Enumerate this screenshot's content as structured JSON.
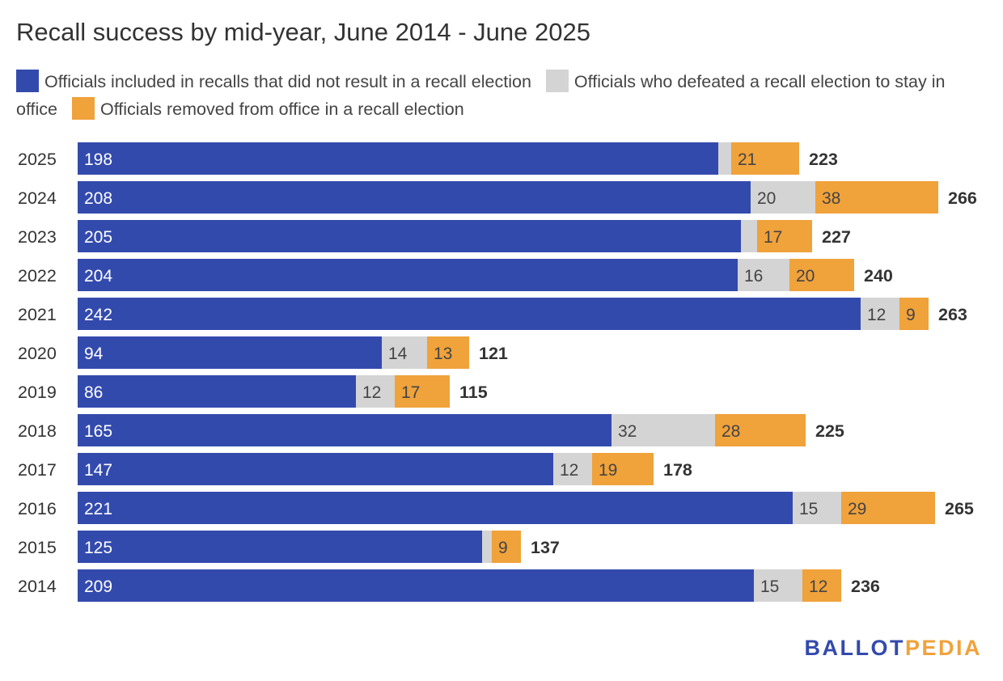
{
  "chart_data": {
    "type": "bar",
    "orientation": "horizontal",
    "stacked": true,
    "title": "Recall success by mid-year, June 2014 - June 2025",
    "categories": [
      "2025",
      "2024",
      "2023",
      "2022",
      "2021",
      "2020",
      "2019",
      "2018",
      "2017",
      "2016",
      "2015",
      "2014"
    ],
    "series": [
      {
        "name": "Officials included in recalls that did not result in a recall election",
        "color": "#334aad",
        "label_color": "#ffffff",
        "values": [
          198,
          208,
          205,
          204,
          242,
          94,
          86,
          165,
          147,
          221,
          125,
          209
        ]
      },
      {
        "name": "Officials who defeated a recall election to stay in office",
        "color": "#d4d4d4",
        "label_color": "#444444",
        "values": [
          4,
          20,
          5,
          16,
          12,
          14,
          12,
          32,
          12,
          15,
          3,
          15
        ]
      },
      {
        "name": "Officials removed from office in a recall election",
        "color": "#f0a23b",
        "label_color": "#444444",
        "values": [
          21,
          38,
          17,
          20,
          9,
          13,
          17,
          28,
          19,
          29,
          9,
          12
        ]
      }
    ],
    "segment_labels": [
      [
        "198",
        "",
        "21"
      ],
      [
        "208",
        "20",
        "38"
      ],
      [
        "205",
        "",
        "17"
      ],
      [
        "204",
        "16",
        "20"
      ],
      [
        "242",
        "12",
        "9"
      ],
      [
        "94",
        "14",
        "13"
      ],
      [
        "86",
        "12",
        "17"
      ],
      [
        "165",
        "32",
        "28"
      ],
      [
        "147",
        "12",
        "19"
      ],
      [
        "221",
        "15",
        "29"
      ],
      [
        "125",
        "",
        "9"
      ],
      [
        "209",
        "15",
        "12"
      ]
    ],
    "totals": [
      "223",
      "266",
      "227",
      "240",
      "263",
      "121",
      "115",
      "225",
      "178",
      "265",
      "137",
      "236"
    ],
    "xlim": [
      0,
      266
    ],
    "grid": false,
    "legend_position": "top"
  },
  "brand": {
    "logo_part1": "BALLOT",
    "logo_part2": "PEDIA",
    "color1": "#334aad",
    "color2": "#f0a23b"
  }
}
